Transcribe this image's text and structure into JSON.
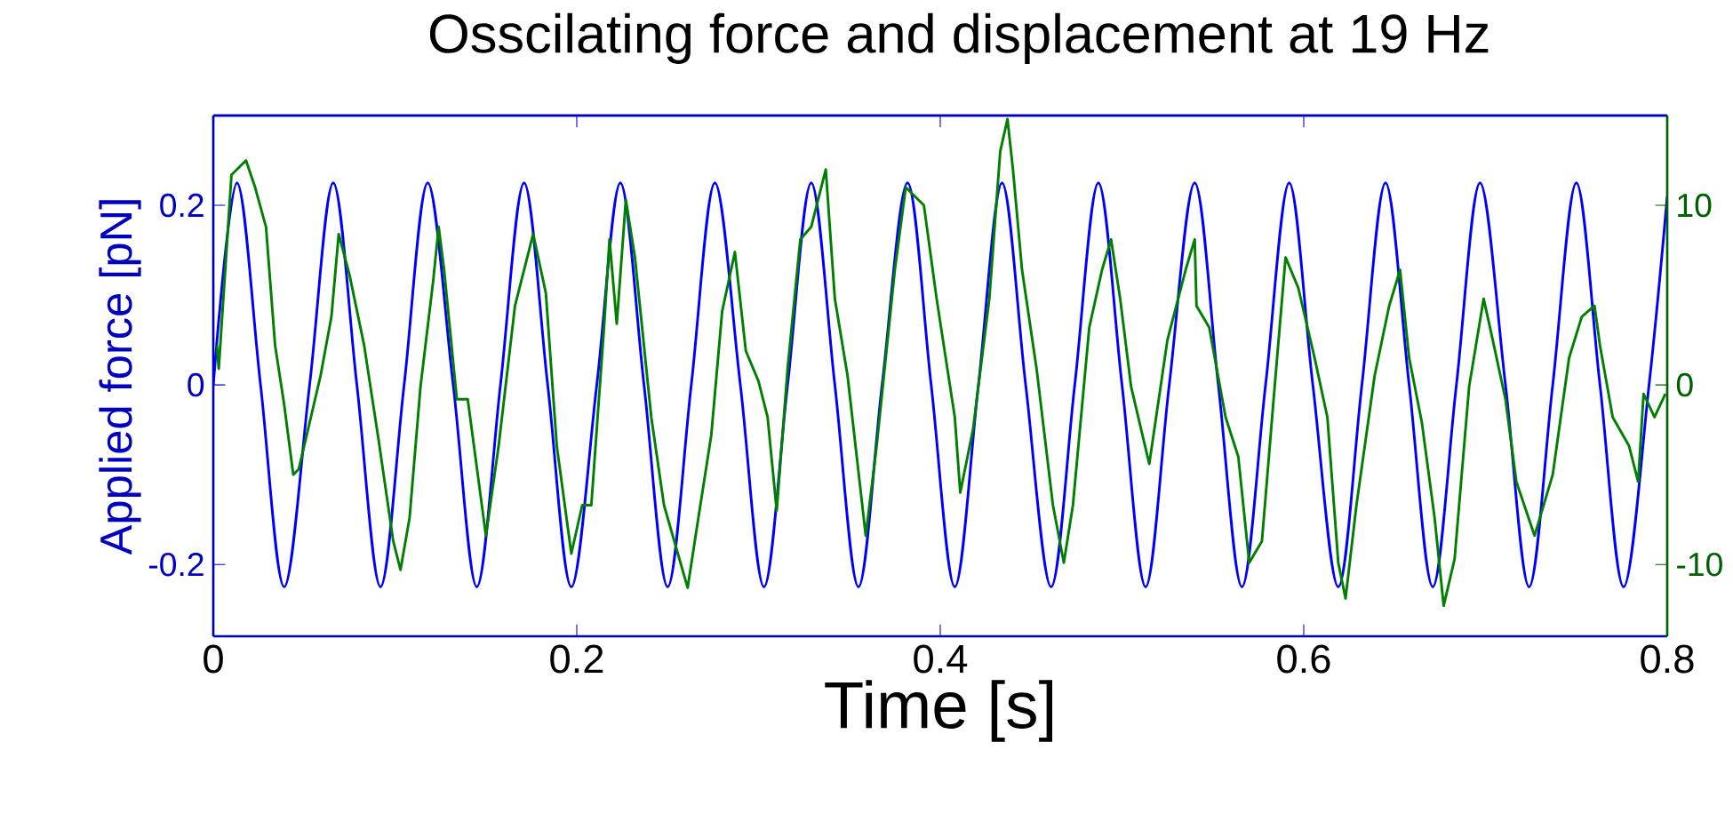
{
  "chart_data": {
    "type": "line",
    "title": "Osscilating force and displacement at 19 Hz",
    "xlabel": "Time [s]",
    "ylabel": "Applied force [pN]",
    "xlim": [
      0,
      0.8
    ],
    "xticks": [
      0,
      0.2,
      0.4,
      0.6,
      0.8
    ],
    "ylim": [
      -0.28,
      0.3
    ],
    "yticks": [
      -0.2,
      0,
      0.2
    ],
    "y2lim": [
      -14,
      15
    ],
    "y2ticks": [
      -10,
      0,
      10
    ],
    "series": [
      {
        "color": "#0000ff",
        "x": [
          0,
          0.013,
          0.026,
          0.039,
          0.053,
          0.066,
          0.079,
          0.092,
          0.105,
          0.118,
          0.132,
          0.145,
          0.158,
          0.171,
          0.184,
          0.197,
          0.211,
          0.224,
          0.237,
          0.25,
          0.263,
          0.276,
          0.29,
          0.303,
          0.316,
          0.329,
          0.342,
          0.355,
          0.368,
          0.382,
          0.395,
          0.408,
          0.421,
          0.434,
          0.447,
          0.461,
          0.474,
          0.487,
          0.5,
          0.513,
          0.526,
          0.54,
          0.553,
          0.566,
          0.579,
          0.592,
          0.605,
          0.619,
          0.632,
          0.645,
          0.658,
          0.671,
          0.684,
          0.697,
          0.711,
          0.724,
          0.737,
          0.75,
          0.763,
          0.776,
          0.79,
          0.8
        ],
        "values": [
          0,
          0.225,
          0,
          -0.225,
          0,
          0.225,
          0,
          -0.225,
          0,
          0.225,
          0,
          -0.225,
          0,
          0.225,
          0,
          -0.225,
          0,
          0.225,
          0,
          -0.225,
          0,
          0.225,
          0,
          -0.225,
          0,
          0.225,
          0,
          -0.225,
          0,
          0.225,
          0,
          -0.225,
          0,
          0.225,
          0,
          -0.225,
          0,
          0.225,
          0,
          -0.225,
          0,
          0.225,
          0,
          -0.225,
          0,
          0.225,
          0,
          -0.225,
          0,
          0.225,
          0,
          -0.225,
          0,
          0.225,
          0,
          -0.225,
          0,
          0.225,
          0,
          -0.225,
          0,
          0.21
        ]
      },
      {
        "color": "#007f00",
        "axis": "y2",
        "x": [
          0.002,
          0.003,
          0.01,
          0.018,
          0.023,
          0.029,
          0.034,
          0.039,
          0.044,
          0.047,
          0.059,
          0.065,
          0.069,
          0.075,
          0.083,
          0.091,
          0.099,
          0.103,
          0.108,
          0.114,
          0.121,
          0.124,
          0.127,
          0.134,
          0.14,
          0.15,
          0.157,
          0.166,
          0.176,
          0.183,
          0.189,
          0.197,
          0.203,
          0.208,
          0.215,
          0.218,
          0.222,
          0.227,
          0.232,
          0.241,
          0.248,
          0.261,
          0.266,
          0.274,
          0.28,
          0.287,
          0.293,
          0.3,
          0.305,
          0.31,
          0.316,
          0.323,
          0.329,
          0.337,
          0.342,
          0.349,
          0.359,
          0.365,
          0.375,
          0.381,
          0.391,
          0.398,
          0.408,
          0.411,
          0.418,
          0.427,
          0.433,
          0.437,
          0.44,
          0.445,
          0.453,
          0.462,
          0.468,
          0.473,
          0.482,
          0.489,
          0.494,
          0.499,
          0.505,
          0.515,
          0.525,
          0.535,
          0.54,
          0.541,
          0.548,
          0.557,
          0.564,
          0.57,
          0.577,
          0.584,
          0.59,
          0.597,
          0.606,
          0.613,
          0.619,
          0.623,
          0.629,
          0.639,
          0.647,
          0.653,
          0.658,
          0.665,
          0.672,
          0.677,
          0.683,
          0.691,
          0.699,
          0.704,
          0.711,
          0.717,
          0.727,
          0.737,
          0.746,
          0.753,
          0.76,
          0.763,
          0.77,
          0.779,
          0.784,
          0.787,
          0.793,
          0.799
        ],
        "values": [
          2.2,
          0.9,
          11.7,
          12.5,
          11,
          8.8,
          2.2,
          -1.1,
          -5,
          -4.7,
          0.5,
          3.8,
          8.4,
          6.1,
          2.2,
          -3.1,
          -8.7,
          -10.3,
          -7.4,
          -0.1,
          5.8,
          8.8,
          6.4,
          -0.8,
          -0.8,
          -8.4,
          -3.4,
          4.4,
          8.4,
          5.1,
          -3.4,
          -9.4,
          -6.7,
          -6.7,
          3.2,
          8.1,
          3.4,
          10.3,
          7.1,
          -1.8,
          -6.7,
          -11.3,
          -8,
          -2.8,
          4.1,
          7.4,
          1.9,
          0.2,
          -1.8,
          -7,
          0.9,
          8.1,
          8.8,
          12,
          4.8,
          0.5,
          -8.4,
          -3.4,
          6.4,
          11,
          10,
          4.8,
          -1.8,
          -6,
          -2.5,
          4.8,
          13,
          14.8,
          12,
          6.4,
          0.9,
          -6.7,
          -9.9,
          -6.7,
          3.2,
          6.4,
          8.1,
          4.8,
          -0.1,
          -4.4,
          2.5,
          6.4,
          8.1,
          4.4,
          3.2,
          -1.8,
          -4,
          -9.9,
          -8.7,
          -0.1,
          7.1,
          5.4,
          1.5,
          -1.8,
          -9.9,
          -11.9,
          -6.7,
          0.5,
          4.4,
          6.4,
          1.5,
          -2.1,
          -7.4,
          -12.3,
          -9.7,
          -0.1,
          4.8,
          2.5,
          -0.8,
          -5.4,
          -8.4,
          -5,
          1.5,
          3.8,
          4.4,
          2.2,
          -1.8,
          -3.4,
          -5.4,
          -0.5,
          -1.8,
          -0.5
        ]
      }
    ]
  }
}
